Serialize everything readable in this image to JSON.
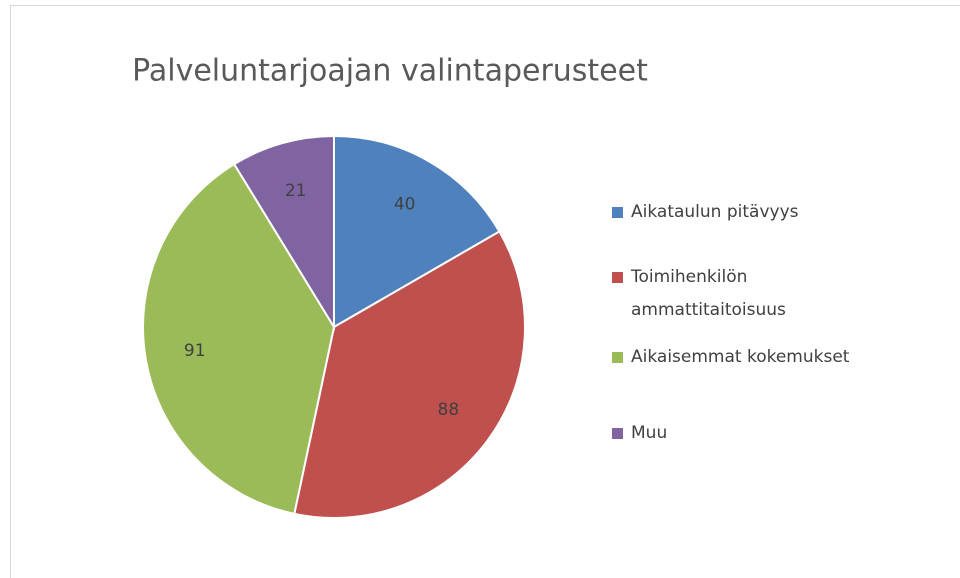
{
  "chart_data": {
    "type": "pie",
    "title": "Palveluntarjoajan valintaperusteet",
    "categories": [
      "Aikataulun pitävyys",
      "Toimihenkilön ammattitaitoisuus",
      "Aikaisemmat kokemukset",
      "Muu"
    ],
    "values": [
      40,
      88,
      91,
      21
    ],
    "colors": [
      "#4f81bd",
      "#c0504d",
      "#9bbb59",
      "#8064a2"
    ],
    "legend": "right"
  }
}
